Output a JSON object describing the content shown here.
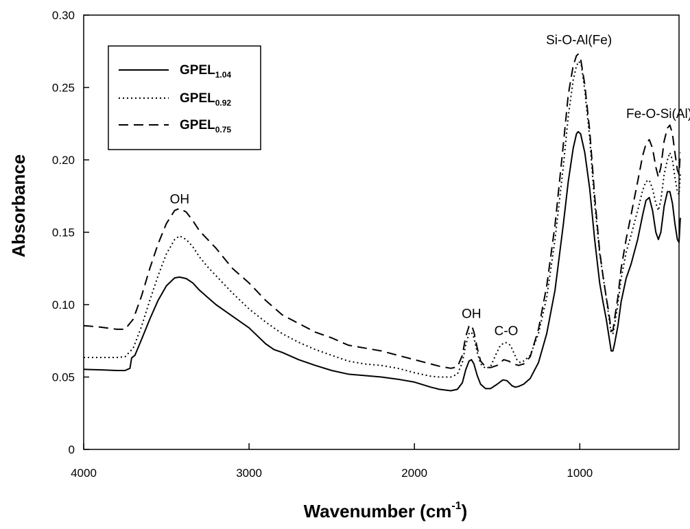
{
  "chart_data": {
    "type": "line",
    "title": "",
    "xlabel": "Wavenumber (cm",
    "xlabel_sup": "-1",
    "xlabel_close": ")",
    "ylabel": "Absorbance",
    "xlim": [
      4000,
      400
    ],
    "x_reversed": true,
    "ylim": [
      0,
      0.3
    ],
    "x_ticks": [
      4000,
      3000,
      2000,
      1000
    ],
    "x_tick_labels": [
      "4000",
      "3000",
      "2000",
      "1000"
    ],
    "y_ticks": [
      0,
      0.05,
      0.1,
      0.15,
      0.2,
      0.25,
      0.3
    ],
    "y_tick_labels": [
      "0",
      "0.05",
      "0.10",
      "0.15",
      "0.20",
      "0.25",
      "0.30"
    ],
    "grid": false,
    "legend_position": "top-left",
    "series": [
      {
        "name": "GPEL",
        "name_sub": "1.04",
        "style": "solid",
        "points": [
          [
            4000,
            0.0553
          ],
          [
            3900,
            0.055
          ],
          [
            3800,
            0.0545
          ],
          [
            3750,
            0.0545
          ],
          [
            3720,
            0.056
          ],
          [
            3710,
            0.0632
          ],
          [
            3690,
            0.065
          ],
          [
            3650,
            0.076
          ],
          [
            3600,
            0.09
          ],
          [
            3550,
            0.103
          ],
          [
            3500,
            0.113
          ],
          [
            3450,
            0.1185
          ],
          [
            3420,
            0.119
          ],
          [
            3380,
            0.118
          ],
          [
            3340,
            0.115
          ],
          [
            3300,
            0.11
          ],
          [
            3250,
            0.105
          ],
          [
            3200,
            0.1
          ],
          [
            3150,
            0.096
          ],
          [
            3100,
            0.092
          ],
          [
            3000,
            0.084
          ],
          [
            2900,
            0.073
          ],
          [
            2850,
            0.069
          ],
          [
            2800,
            0.067
          ],
          [
            2700,
            0.062
          ],
          [
            2600,
            0.058
          ],
          [
            2500,
            0.0545
          ],
          [
            2400,
            0.052
          ],
          [
            2300,
            0.051
          ],
          [
            2200,
            0.05
          ],
          [
            2100,
            0.0485
          ],
          [
            2000,
            0.0465
          ],
          [
            1900,
            0.043
          ],
          [
            1850,
            0.0415
          ],
          [
            1780,
            0.0405
          ],
          [
            1740,
            0.0415
          ],
          [
            1710,
            0.046
          ],
          [
            1690,
            0.055
          ],
          [
            1670,
            0.061
          ],
          [
            1655,
            0.062
          ],
          [
            1640,
            0.059
          ],
          [
            1620,
            0.051
          ],
          [
            1600,
            0.045
          ],
          [
            1570,
            0.042
          ],
          [
            1540,
            0.042
          ],
          [
            1500,
            0.045
          ],
          [
            1465,
            0.048
          ],
          [
            1440,
            0.0475
          ],
          [
            1410,
            0.044
          ],
          [
            1390,
            0.043
          ],
          [
            1370,
            0.0435
          ],
          [
            1340,
            0.045
          ],
          [
            1300,
            0.049
          ],
          [
            1250,
            0.06
          ],
          [
            1200,
            0.08
          ],
          [
            1150,
            0.11
          ],
          [
            1100,
            0.155
          ],
          [
            1070,
            0.185
          ],
          [
            1040,
            0.208
          ],
          [
            1020,
            0.218
          ],
          [
            1010,
            0.2195
          ],
          [
            995,
            0.218
          ],
          [
            970,
            0.205
          ],
          [
            940,
            0.18
          ],
          [
            910,
            0.145
          ],
          [
            880,
            0.115
          ],
          [
            860,
            0.102
          ],
          [
            840,
            0.09
          ],
          [
            825,
            0.079
          ],
          [
            810,
            0.068
          ],
          [
            800,
            0.068
          ],
          [
            790,
            0.073
          ],
          [
            770,
            0.085
          ],
          [
            750,
            0.102
          ],
          [
            720,
            0.118
          ],
          [
            690,
            0.128
          ],
          [
            650,
            0.145
          ],
          [
            620,
            0.162
          ],
          [
            600,
            0.172
          ],
          [
            580,
            0.174
          ],
          [
            560,
            0.165
          ],
          [
            540,
            0.15
          ],
          [
            525,
            0.145
          ],
          [
            510,
            0.15
          ],
          [
            490,
            0.168
          ],
          [
            470,
            0.178
          ],
          [
            455,
            0.178
          ],
          [
            440,
            0.17
          ],
          [
            425,
            0.156
          ],
          [
            410,
            0.145
          ],
          [
            400,
            0.143
          ],
          [
            392,
            0.16
          ]
        ]
      },
      {
        "name": "GPEL",
        "name_sub": "0.92",
        "style": "dotted",
        "points": [
          [
            4000,
            0.0635
          ],
          [
            3900,
            0.0635
          ],
          [
            3800,
            0.0635
          ],
          [
            3750,
            0.064
          ],
          [
            3700,
            0.07
          ],
          [
            3650,
            0.085
          ],
          [
            3600,
            0.103
          ],
          [
            3550,
            0.12
          ],
          [
            3500,
            0.135
          ],
          [
            3450,
            0.145
          ],
          [
            3420,
            0.1475
          ],
          [
            3380,
            0.145
          ],
          [
            3340,
            0.14
          ],
          [
            3300,
            0.133
          ],
          [
            3250,
            0.126
          ],
          [
            3200,
            0.12
          ],
          [
            3150,
            0.114
          ],
          [
            3100,
            0.108
          ],
          [
            3000,
            0.097
          ],
          [
            2900,
            0.088
          ],
          [
            2800,
            0.08
          ],
          [
            2700,
            0.074
          ],
          [
            2600,
            0.069
          ],
          [
            2500,
            0.065
          ],
          [
            2400,
            0.061
          ],
          [
            2300,
            0.059
          ],
          [
            2200,
            0.058
          ],
          [
            2100,
            0.056
          ],
          [
            2000,
            0.053
          ],
          [
            1900,
            0.0505
          ],
          [
            1850,
            0.05
          ],
          [
            1780,
            0.05
          ],
          [
            1740,
            0.052
          ],
          [
            1710,
            0.06
          ],
          [
            1690,
            0.072
          ],
          [
            1670,
            0.08
          ],
          [
            1655,
            0.081
          ],
          [
            1640,
            0.077
          ],
          [
            1620,
            0.067
          ],
          [
            1600,
            0.059
          ],
          [
            1570,
            0.056
          ],
          [
            1540,
            0.057
          ],
          [
            1510,
            0.065
          ],
          [
            1480,
            0.072
          ],
          [
            1450,
            0.074
          ],
          [
            1420,
            0.072
          ],
          [
            1400,
            0.067
          ],
          [
            1380,
            0.062
          ],
          [
            1360,
            0.06
          ],
          [
            1340,
            0.061
          ],
          [
            1300,
            0.065
          ],
          [
            1250,
            0.08
          ],
          [
            1200,
            0.105
          ],
          [
            1150,
            0.145
          ],
          [
            1100,
            0.195
          ],
          [
            1070,
            0.23
          ],
          [
            1040,
            0.255
          ],
          [
            1020,
            0.265
          ],
          [
            1005,
            0.268
          ],
          [
            990,
            0.265
          ],
          [
            970,
            0.248
          ],
          [
            940,
            0.215
          ],
          [
            910,
            0.17
          ],
          [
            880,
            0.135
          ],
          [
            860,
            0.12
          ],
          [
            840,
            0.105
          ],
          [
            825,
            0.092
          ],
          [
            810,
            0.08
          ],
          [
            800,
            0.08
          ],
          [
            790,
            0.086
          ],
          [
            770,
            0.1
          ],
          [
            750,
            0.118
          ],
          [
            720,
            0.136
          ],
          [
            690,
            0.148
          ],
          [
            650,
            0.165
          ],
          [
            620,
            0.179
          ],
          [
            600,
            0.185
          ],
          [
            580,
            0.186
          ],
          [
            560,
            0.18
          ],
          [
            540,
            0.17
          ],
          [
            525,
            0.165
          ],
          [
            510,
            0.172
          ],
          [
            490,
            0.19
          ],
          [
            470,
            0.2
          ],
          [
            455,
            0.205
          ],
          [
            440,
            0.2
          ],
          [
            425,
            0.188
          ],
          [
            410,
            0.178
          ],
          [
            400,
            0.176
          ],
          [
            392,
            0.19
          ]
        ]
      },
      {
        "name": "GPEL",
        "name_sub": "0.75",
        "style": "dashed",
        "points": [
          [
            4000,
            0.0855
          ],
          [
            3900,
            0.0845
          ],
          [
            3800,
            0.083
          ],
          [
            3750,
            0.083
          ],
          [
            3700,
            0.09
          ],
          [
            3650,
            0.106
          ],
          [
            3600,
            0.125
          ],
          [
            3550,
            0.142
          ],
          [
            3500,
            0.156
          ],
          [
            3450,
            0.165
          ],
          [
            3420,
            0.1665
          ],
          [
            3380,
            0.164
          ],
          [
            3340,
            0.158
          ],
          [
            3300,
            0.151
          ],
          [
            3250,
            0.145
          ],
          [
            3200,
            0.139
          ],
          [
            3150,
            0.132
          ],
          [
            3100,
            0.125
          ],
          [
            3000,
            0.115
          ],
          [
            2900,
            0.103
          ],
          [
            2800,
            0.093
          ],
          [
            2700,
            0.087
          ],
          [
            2600,
            0.081
          ],
          [
            2500,
            0.077
          ],
          [
            2400,
            0.072
          ],
          [
            2300,
            0.07
          ],
          [
            2200,
            0.068
          ],
          [
            2100,
            0.065
          ],
          [
            2000,
            0.062
          ],
          [
            1900,
            0.059
          ],
          [
            1850,
            0.0575
          ],
          [
            1780,
            0.056
          ],
          [
            1740,
            0.057
          ],
          [
            1710,
            0.065
          ],
          [
            1690,
            0.078
          ],
          [
            1670,
            0.085
          ],
          [
            1655,
            0.086
          ],
          [
            1640,
            0.081
          ],
          [
            1620,
            0.07
          ],
          [
            1600,
            0.061
          ],
          [
            1570,
            0.057
          ],
          [
            1540,
            0.0565
          ],
          [
            1500,
            0.058
          ],
          [
            1460,
            0.062
          ],
          [
            1430,
            0.061
          ],
          [
            1400,
            0.059
          ],
          [
            1370,
            0.058
          ],
          [
            1340,
            0.059
          ],
          [
            1300,
            0.064
          ],
          [
            1250,
            0.083
          ],
          [
            1200,
            0.113
          ],
          [
            1150,
            0.155
          ],
          [
            1100,
            0.21
          ],
          [
            1070,
            0.245
          ],
          [
            1040,
            0.265
          ],
          [
            1020,
            0.272
          ],
          [
            1010,
            0.273
          ],
          [
            995,
            0.27
          ],
          [
            970,
            0.252
          ],
          [
            940,
            0.22
          ],
          [
            910,
            0.175
          ],
          [
            880,
            0.137
          ],
          [
            860,
            0.12
          ],
          [
            840,
            0.105
          ],
          [
            825,
            0.095
          ],
          [
            810,
            0.082
          ],
          [
            800,
            0.082
          ],
          [
            790,
            0.09
          ],
          [
            770,
            0.105
          ],
          [
            750,
            0.125
          ],
          [
            720,
            0.145
          ],
          [
            690,
            0.162
          ],
          [
            650,
            0.185
          ],
          [
            620,
            0.203
          ],
          [
            600,
            0.211
          ],
          [
            580,
            0.214
          ],
          [
            560,
            0.208
          ],
          [
            540,
            0.195
          ],
          [
            525,
            0.188
          ],
          [
            510,
            0.195
          ],
          [
            490,
            0.213
          ],
          [
            470,
            0.222
          ],
          [
            455,
            0.224
          ],
          [
            440,
            0.218
          ],
          [
            425,
            0.205
          ],
          [
            410,
            0.193
          ],
          [
            400,
            0.19
          ],
          [
            392,
            0.205
          ]
        ]
      }
    ],
    "annotations": [
      {
        "text": "OH",
        "x": 3420,
        "y": 0.167
      },
      {
        "text": "OH",
        "x": 1655,
        "y": 0.088
      },
      {
        "text": "C-O",
        "x": 1445,
        "y": 0.076
      },
      {
        "text": "Si-O-Al(Fe)",
        "x": 1005,
        "y": 0.277
      },
      {
        "text": "Fe-O-Si(Al)",
        "x": 520,
        "y": 0.226
      }
    ]
  }
}
